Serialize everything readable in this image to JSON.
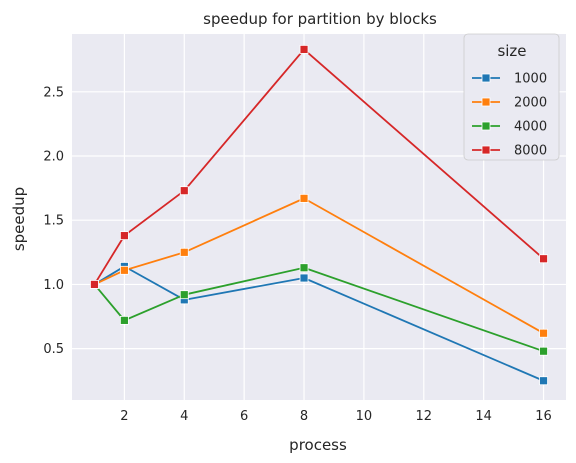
{
  "chart_data": {
    "type": "line",
    "title": "speedup for partition by blocks",
    "xlabel": "process",
    "ylabel": "speedup",
    "x": [
      1,
      2,
      4,
      8,
      16
    ],
    "xlim": [
      0.25,
      16.75
    ],
    "ylim": [
      0.1,
      2.95
    ],
    "xticks": [
      2,
      4,
      6,
      8,
      10,
      12,
      14,
      16
    ],
    "yticks": [
      0.5,
      1.0,
      1.5,
      2.0,
      2.5
    ],
    "ytick_labels": [
      "0.5",
      "1.0",
      "1.5",
      "2.0",
      "2.5"
    ],
    "grid": true,
    "legend": {
      "title": "size",
      "placement": "top-right"
    },
    "series": [
      {
        "name": "1000",
        "color": "#1f77b4",
        "values": [
          1.0,
          1.14,
          0.88,
          1.05,
          0.25
        ]
      },
      {
        "name": "2000",
        "color": "#ff7f0e",
        "values": [
          1.0,
          1.11,
          1.25,
          1.67,
          0.62
        ]
      },
      {
        "name": "4000",
        "color": "#2ca02c",
        "values": [
          1.0,
          0.72,
          0.92,
          1.13,
          0.48
        ]
      },
      {
        "name": "8000",
        "color": "#d62728",
        "values": [
          1.0,
          1.38,
          1.73,
          2.83,
          1.2
        ]
      }
    ]
  }
}
